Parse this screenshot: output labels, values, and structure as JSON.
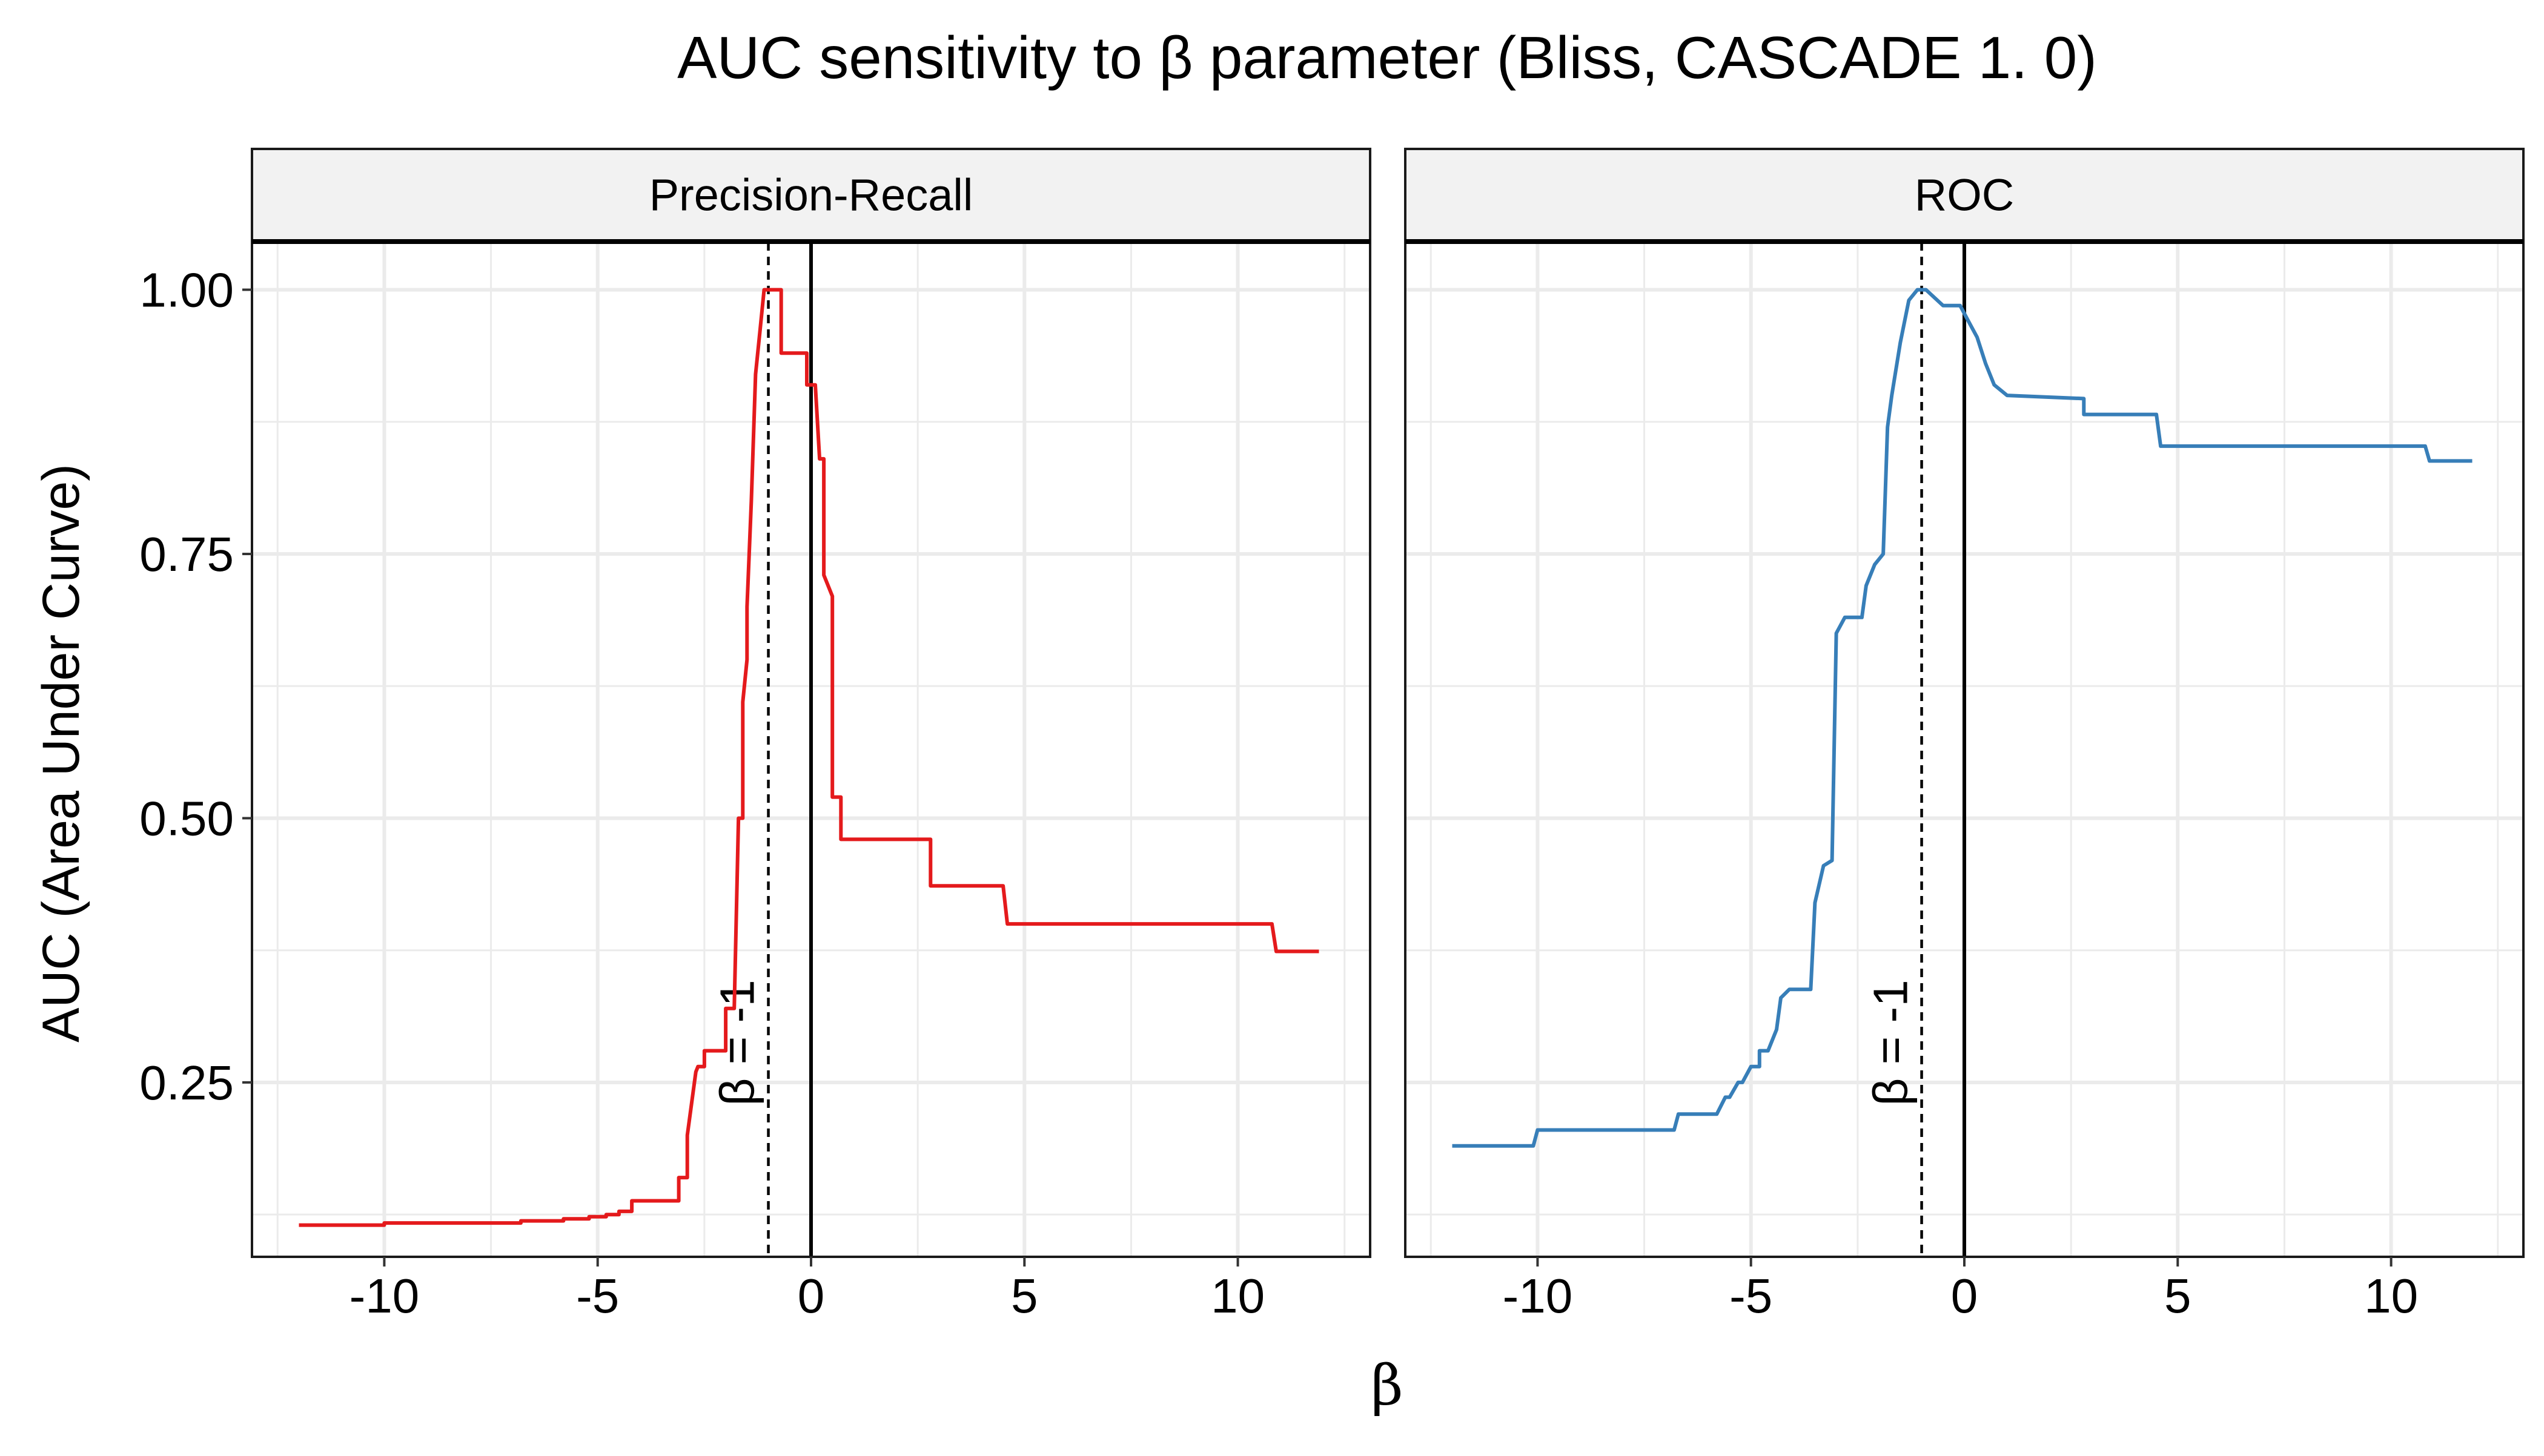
{
  "chart_data": {
    "type": "line",
    "title": "AUC sensitivity to β parameter (Bliss, CASCADE 1. 0)",
    "xlabel": "β",
    "ylabel": "AUC (Area Under Curve)",
    "xlim": [
      -13.1,
      13.1
    ],
    "ylim": [
      0.085,
      1.045
    ],
    "x_ticks": [
      -10,
      -5,
      0,
      5,
      10
    ],
    "x_tick_labels": [
      "-10",
      "-5",
      "0",
      "5",
      "10"
    ],
    "y_ticks": [
      0.25,
      0.5,
      0.75,
      1.0
    ],
    "y_tick_labels": [
      "0.25",
      "0.50",
      "0.75",
      "1.00"
    ],
    "grid": true,
    "legend": "none",
    "annotations": [
      {
        "label": "β = -1",
        "x": -1,
        "line": "dashed"
      },
      {
        "label": "",
        "x": 0,
        "line": "solid"
      }
    ],
    "panels": [
      {
        "strip": "Precision-Recall",
        "color": "#E41A1C",
        "x": [
          -12,
          -10,
          -10,
          -6.8,
          -6.8,
          -5.8,
          -5.8,
          -5.2,
          -5.2,
          -4.8,
          -4.8,
          -4.5,
          -4.5,
          -4.2,
          -4.2,
          -4.0,
          -4.0,
          -3.1,
          -3.1,
          -2.9,
          -2.9,
          -2.7,
          -2.65,
          -2.5,
          -2.5,
          -2.0,
          -2.0,
          -1.8,
          -1.7,
          -1.6,
          -1.6,
          -1.5,
          -1.5,
          -1.4,
          -1.3,
          -1.2,
          -1.1,
          -1.0,
          -0.9,
          -0.7,
          -0.7,
          -0.4,
          -0.4,
          -0.1,
          -0.1,
          0.1,
          0.2,
          0.3,
          0.3,
          0.5,
          0.5,
          0.6,
          0.7,
          0.7,
          0.9,
          1.0,
          2.8,
          2.8,
          4.5,
          4.6,
          10.8,
          10.9,
          11.9
        ],
        "y": [
          0.115,
          0.115,
          0.117,
          0.117,
          0.119,
          0.119,
          0.121,
          0.121,
          0.123,
          0.123,
          0.125,
          0.125,
          0.128,
          0.128,
          0.138,
          0.138,
          0.138,
          0.138,
          0.16,
          0.16,
          0.2,
          0.26,
          0.265,
          0.265,
          0.28,
          0.28,
          0.32,
          0.32,
          0.5,
          0.5,
          0.61,
          0.65,
          0.7,
          0.8,
          0.92,
          0.96,
          1.0,
          1.0,
          1.0,
          1.0,
          0.94,
          0.94,
          0.94,
          0.94,
          0.91,
          0.91,
          0.84,
          0.84,
          0.73,
          0.71,
          0.52,
          0.52,
          0.52,
          0.48,
          0.48,
          0.48,
          0.48,
          0.436,
          0.436,
          0.4,
          0.4,
          0.374,
          0.374
        ]
      },
      {
        "strip": "ROC",
        "color": "#377EB8",
        "x": [
          -12,
          -10.1,
          -10,
          -6.8,
          -6.7,
          -5.8,
          -5.6,
          -5.5,
          -5.3,
          -5.2,
          -5.0,
          -4.8,
          -4.8,
          -4.6,
          -4.4,
          -4.3,
          -4.1,
          -4.1,
          -3.6,
          -3.5,
          -3.3,
          -3.1,
          -3.0,
          -2.8,
          -2.7,
          -2.6,
          -2.4,
          -2.3,
          -2.1,
          -1.9,
          -1.8,
          -1.7,
          -1.5,
          -1.3,
          -1.1,
          -1.0,
          -0.9,
          -0.5,
          -0.4,
          -0.1,
          0.1,
          0.3,
          0.5,
          0.7,
          1.0,
          1.0,
          2.8,
          2.8,
          4.5,
          4.6,
          10.8,
          10.9,
          11.9
        ],
        "y": [
          0.19,
          0.19,
          0.205,
          0.205,
          0.22,
          0.22,
          0.236,
          0.236,
          0.25,
          0.25,
          0.265,
          0.265,
          0.28,
          0.28,
          0.3,
          0.33,
          0.338,
          0.338,
          0.338,
          0.42,
          0.455,
          0.46,
          0.675,
          0.69,
          0.69,
          0.69,
          0.69,
          0.72,
          0.74,
          0.75,
          0.87,
          0.9,
          0.95,
          0.99,
          1.0,
          1.0,
          1.0,
          0.985,
          0.985,
          0.985,
          0.97,
          0.955,
          0.93,
          0.91,
          0.9,
          0.9,
          0.897,
          0.882,
          0.882,
          0.852,
          0.852,
          0.838,
          0.838
        ]
      }
    ]
  }
}
